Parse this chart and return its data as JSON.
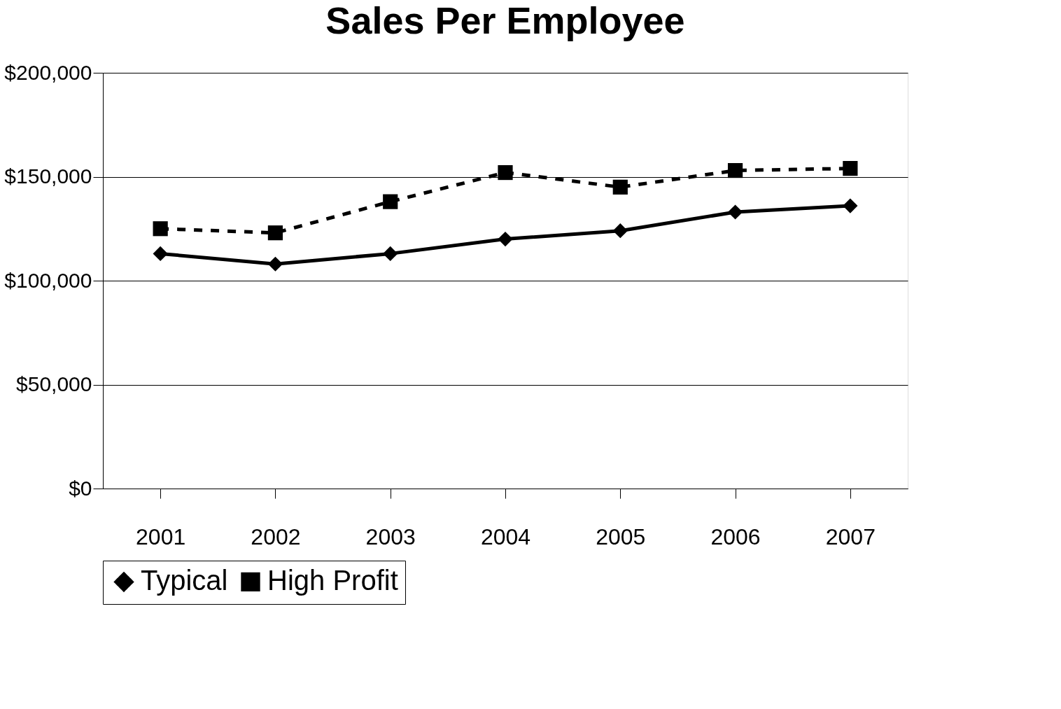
{
  "chart_data": {
    "type": "line",
    "title": "Sales Per Employee",
    "categories": [
      "2001",
      "2002",
      "2003",
      "2004",
      "2005",
      "2006",
      "2007"
    ],
    "series": [
      {
        "name": "Typical",
        "color": "#000000",
        "marker": "diamond",
        "line_style": "solid",
        "values": [
          113000,
          108000,
          113000,
          120000,
          124000,
          133000,
          136000
        ]
      },
      {
        "name": "High Profit",
        "color": "#000000",
        "marker": "square",
        "line_style": "dashed",
        "values": [
          125000,
          123000,
          138000,
          152000,
          145000,
          153000,
          154000
        ]
      }
    ],
    "ylim": [
      0,
      200000
    ],
    "yticks": [
      {
        "value": 0,
        "label": "$0"
      },
      {
        "value": 50000,
        "label": "$50,000"
      },
      {
        "value": 100000,
        "label": "$100,000"
      },
      {
        "value": 150000,
        "label": "$150,000"
      },
      {
        "value": 200000,
        "label": "$200,000"
      }
    ],
    "grid": "y",
    "legend": "bottom"
  }
}
